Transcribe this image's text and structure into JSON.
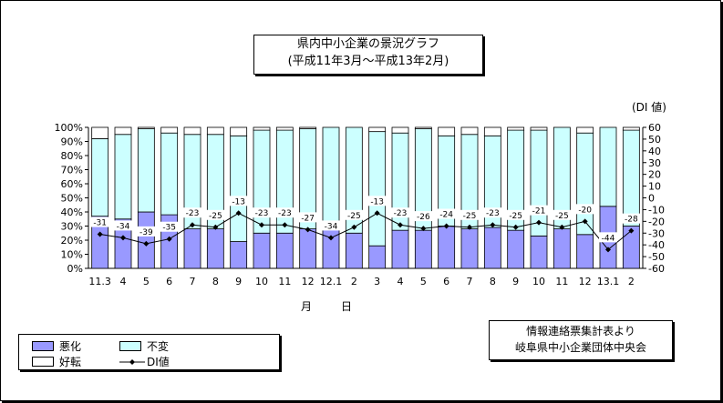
{
  "title": {
    "line1": "県内中小企業の景況グラフ",
    "line2": "(平成11年3月～平成13年2月)"
  },
  "source": {
    "line1": "情報連絡票集計表より",
    "line2": "岐阜県中小企業団体中央会"
  },
  "x_axis_title": "月　日",
  "right_axis_label": "(DI 値)",
  "legend": {
    "bad": "悪化",
    "unchanged": "不変",
    "good": "好転",
    "di": "DI値"
  },
  "colors": {
    "bad": "#9999ff",
    "unchanged": "#ccffff",
    "good": "#ffffff",
    "line": "#000000"
  },
  "chart_data": {
    "type": "bar",
    "stacked": true,
    "categories": [
      "11.3",
      "4",
      "5",
      "6",
      "7",
      "8",
      "9",
      "10",
      "11",
      "12",
      "12.1",
      "2",
      "3",
      "4",
      "5",
      "6",
      "7",
      "8",
      "9",
      "10",
      "11",
      "12",
      "13.1",
      "2"
    ],
    "series": [
      {
        "name": "悪化",
        "values": [
          37,
          35,
          40,
          38,
          28,
          28,
          19,
          25,
          25,
          28,
          28,
          25,
          16,
          27,
          27,
          30,
          28,
          29,
          27,
          23,
          28,
          24,
          44,
          30
        ]
      },
      {
        "name": "不変",
        "values": [
          55,
          60,
          59,
          58,
          67,
          67,
          75,
          73,
          73,
          71,
          72,
          75,
          81,
          69,
          72,
          64,
          67,
          65,
          71,
          75,
          72,
          72,
          56,
          68
        ]
      },
      {
        "name": "好転",
        "values": [
          8,
          5,
          1,
          4,
          5,
          5,
          6,
          2,
          2,
          1,
          0,
          0,
          3,
          4,
          1,
          6,
          5,
          6,
          2,
          2,
          0,
          4,
          0,
          2
        ]
      }
    ],
    "line_series": {
      "name": "DI値",
      "values": [
        -31,
        -34,
        -39,
        -35,
        -23,
        -25,
        -13,
        -23,
        -23,
        -27,
        -34,
        -25,
        -13,
        -23,
        -26,
        -24,
        -25,
        -23,
        -25,
        -21,
        -25,
        -20,
        -44,
        -28
      ]
    },
    "y_left": {
      "ylim": [
        0,
        100
      ],
      "ticks": [
        0,
        10,
        20,
        30,
        40,
        50,
        60,
        70,
        80,
        90,
        100
      ],
      "unit": "%"
    },
    "y_right": {
      "ylim": [
        -60,
        60
      ],
      "ticks": [
        60,
        50,
        40,
        30,
        20,
        10,
        0,
        -10,
        -20,
        -30,
        -40,
        -50,
        -60
      ]
    },
    "grid": false,
    "legend_position": "bottom-left"
  }
}
